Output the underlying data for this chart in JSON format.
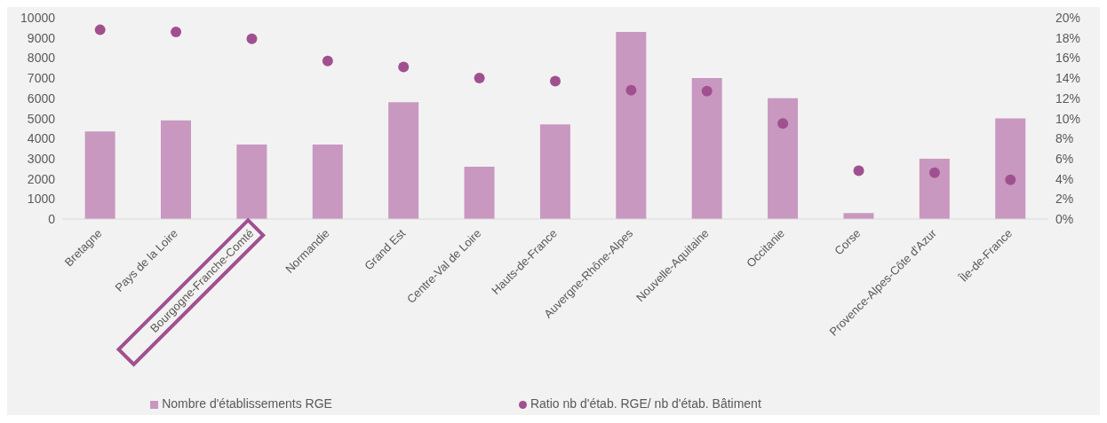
{
  "chart_data": {
    "type": "bar",
    "categories": [
      "Bretagne",
      "Pays de la Loire",
      "Bourgogne-Franche-Comté",
      "Normandie",
      "Grand Est",
      "Centre-Val de Loire",
      "Hauts-de-France",
      "Auvergne-Rhône-Alpes",
      "Nouvelle-Aquitaine",
      "Occitanie",
      "Corse",
      "Provence-Alpes-Côte d'Azur",
      "Île-de-France"
    ],
    "series": [
      {
        "name": "Nombre d'établissements RGE",
        "color": "#c898c0",
        "values": [
          4350,
          4900,
          3700,
          3700,
          5800,
          2600,
          4700,
          9300,
          7000,
          6000,
          300,
          3000,
          5000
        ]
      },
      {
        "name": "Ratio nb d'étab. RGE/ nb d'étab. Bâtiment",
        "type": "scatter",
        "axis": "y2",
        "color": "#a0508f",
        "values": [
          18.8,
          18.6,
          17.9,
          15.7,
          15.1,
          14.0,
          13.7,
          12.8,
          12.7,
          9.5,
          4.8,
          4.6,
          3.9
        ]
      }
    ],
    "ylim": [
      0,
      10000
    ],
    "yticks": [
      0,
      1000,
      2000,
      3000,
      4000,
      5000,
      6000,
      7000,
      8000,
      9000,
      10000
    ],
    "y2lim": [
      0,
      20
    ],
    "y2ticks": [
      {
        "value": 0,
        "label": "0%"
      },
      {
        "value": 2,
        "label": "2%"
      },
      {
        "value": 4,
        "label": "4%"
      },
      {
        "value": 6,
        "label": "6%"
      },
      {
        "value": 8,
        "label": "8%"
      },
      {
        "value": 10,
        "label": "10%"
      },
      {
        "value": 12,
        "label": "12%"
      },
      {
        "value": 14,
        "label": "14%"
      },
      {
        "value": 16,
        "label": "16%"
      },
      {
        "value": 18,
        "label": "18%"
      },
      {
        "value": 20,
        "label": "20%"
      }
    ],
    "grid": false,
    "legend": "bottom",
    "marker": "circle"
  }
}
